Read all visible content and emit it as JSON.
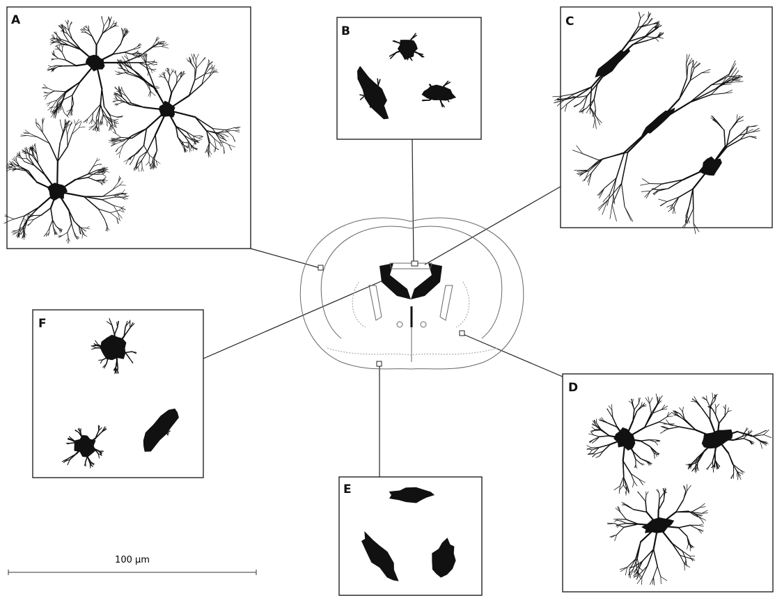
{
  "panels": [
    {
      "label": "A"
    },
    {
      "label": "B"
    },
    {
      "label": "C"
    },
    {
      "label": "D"
    },
    {
      "label": "E"
    },
    {
      "label": "F"
    }
  ],
  "scale_bar": {
    "label": "100 µm"
  }
}
